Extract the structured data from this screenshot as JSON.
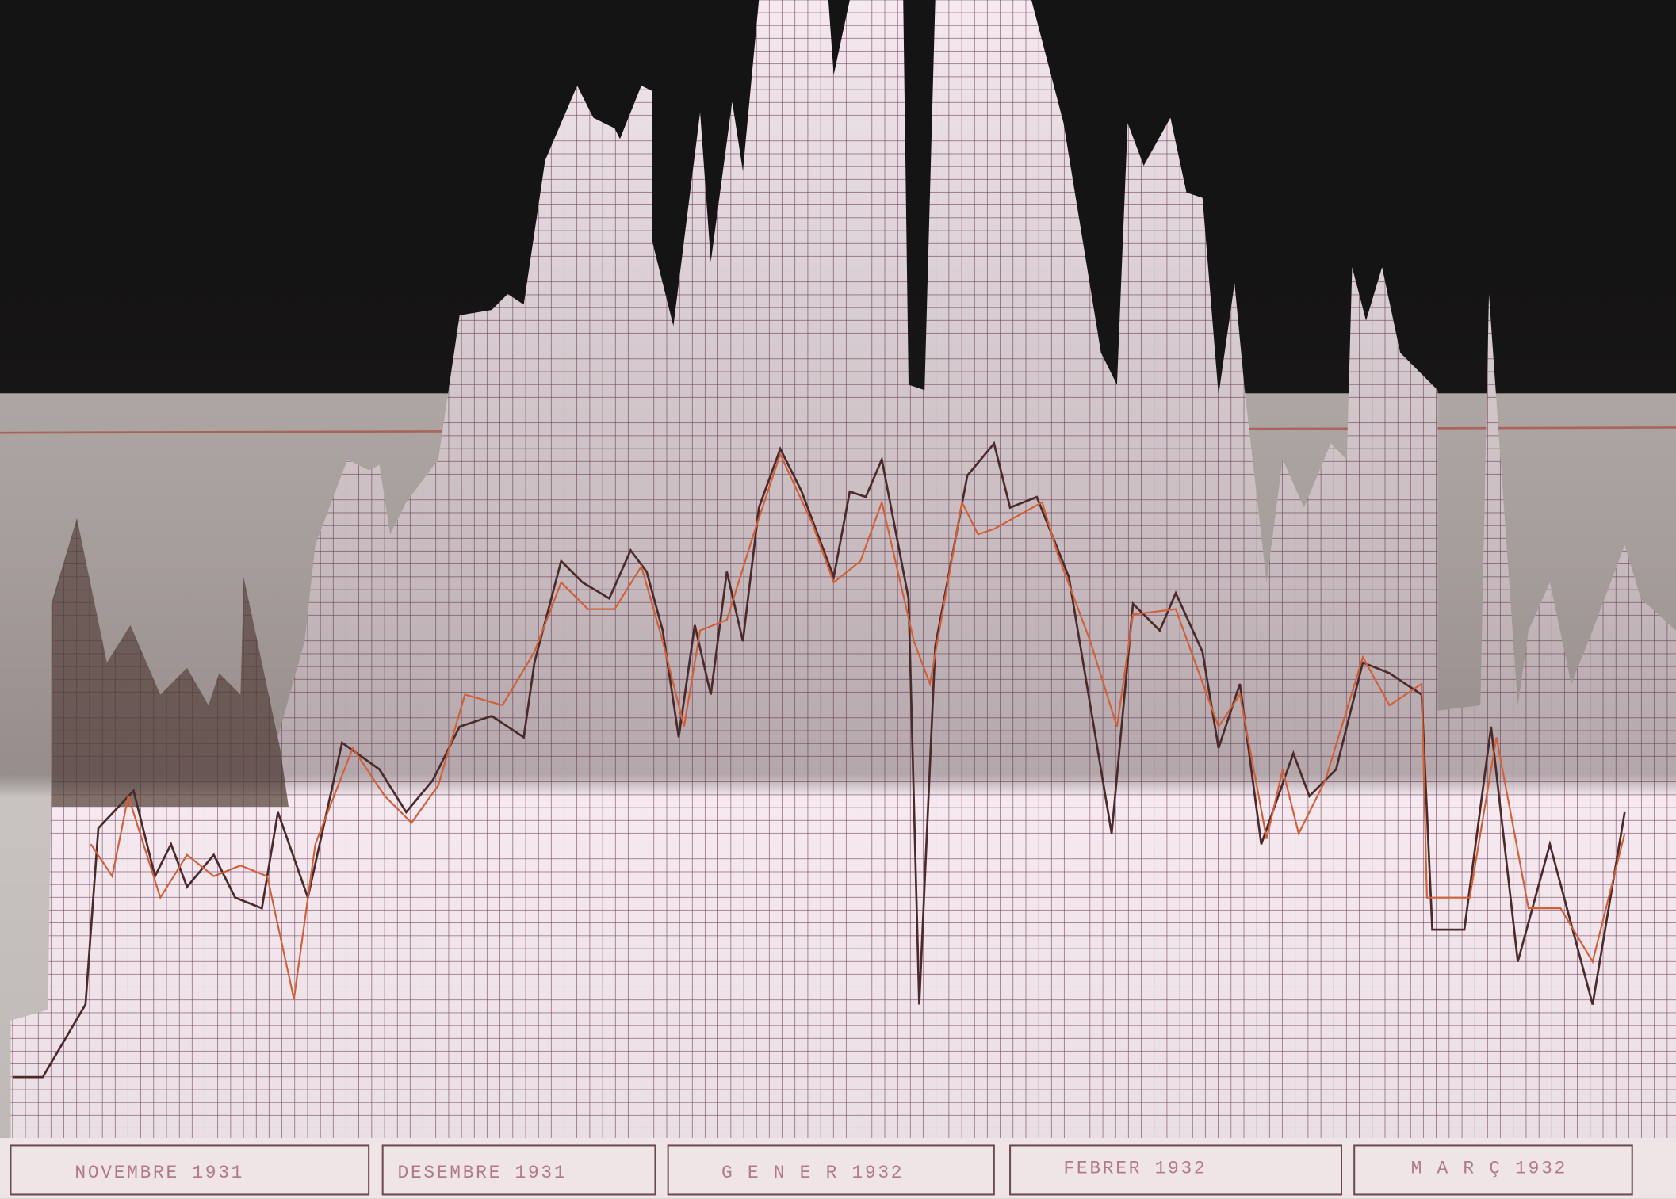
{
  "labels": [
    "NOVEMBRE 1931",
    "DESEMBRE 1931",
    "G E N E R 1932",
    "FEBRER 1932",
    "M A R Ç 1932"
  ]
}
